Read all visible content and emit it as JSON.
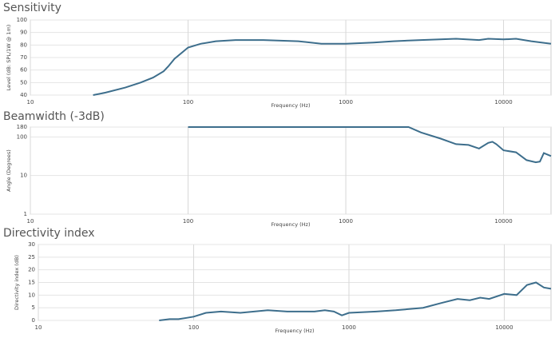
{
  "chart_data": [
    {
      "type": "line",
      "title": "Sensitivity",
      "xlabel": "Frequency (Hz)",
      "ylabel": "Level (dB: SPL/1W @ 1m)",
      "xscale": "log",
      "yscale": "linear",
      "grid": true,
      "color": "#3d6e8c",
      "xlim": [
        10,
        20000
      ],
      "xticks": [
        10,
        100,
        1000,
        10000
      ],
      "ylim": [
        40,
        100
      ],
      "yticks": [
        40,
        50,
        60,
        70,
        80,
        90,
        100
      ],
      "x": [
        25,
        30,
        40,
        50,
        60,
        70,
        75,
        82,
        100,
        120,
        150,
        200,
        300,
        500,
        700,
        1000,
        1500,
        2000,
        3000,
        5000,
        7000,
        8000,
        10000,
        12000,
        15000,
        20000
      ],
      "values": [
        40,
        42,
        46,
        50,
        54,
        59,
        63,
        69,
        78,
        81,
        83,
        84,
        84,
        83,
        81,
        81,
        82,
        83,
        84,
        85,
        84,
        85,
        84.5,
        85,
        83,
        81
      ]
    },
    {
      "type": "line",
      "title": "Beamwidth (-3dB)",
      "xlabel": "Frequency (Hz)",
      "ylabel": "Angle (Degrees)",
      "xscale": "log",
      "yscale": "log",
      "grid": true,
      "color": "#3d6e8c",
      "xlim": [
        10,
        20000
      ],
      "xticks": [
        10,
        100,
        1000,
        10000
      ],
      "ylim": [
        1,
        180
      ],
      "yticks": [
        1,
        10,
        100,
        180
      ],
      "x": [
        100,
        1000,
        2500,
        3000,
        4000,
        5000,
        6000,
        7000,
        8000,
        8500,
        9000,
        10000,
        12000,
        14000,
        16000,
        17000,
        18000,
        20000
      ],
      "values": [
        180,
        180,
        180,
        130,
        90,
        65,
        62,
        50,
        70,
        75,
        65,
        45,
        40,
        25,
        22,
        23,
        38,
        32
      ]
    },
    {
      "type": "line",
      "title": "Directivity index",
      "xlabel": "Frequency (Hz)",
      "ylabel": "Directivity index (dB)",
      "xscale": "log",
      "yscale": "linear",
      "grid": true,
      "color": "#3d6e8c",
      "xlim": [
        10,
        20000
      ],
      "xticks": [
        10,
        100,
        1000,
        10000
      ],
      "ylim": [
        0,
        30
      ],
      "yticks": [
        0,
        5,
        10,
        15,
        20,
        25,
        30
      ],
      "x": [
        60,
        70,
        80,
        90,
        100,
        120,
        150,
        200,
        300,
        400,
        600,
        700,
        800,
        900,
        1000,
        1500,
        2000,
        3000,
        4000,
        5000,
        6000,
        7000,
        8000,
        10000,
        12000,
        14000,
        16000,
        18000,
        20000
      ],
      "values": [
        0,
        0.5,
        0.5,
        1,
        1.5,
        3,
        3.5,
        3,
        4,
        3.5,
        3.5,
        4,
        3.5,
        2,
        3,
        3.5,
        4,
        5,
        7,
        8.5,
        8,
        9,
        8.5,
        10.5,
        10,
        14,
        15,
        13,
        12.5
      ]
    }
  ]
}
